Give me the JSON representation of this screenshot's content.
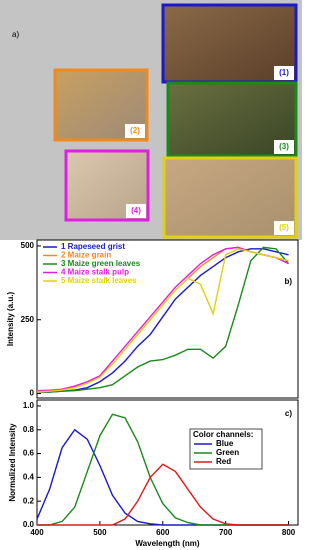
{
  "panel_a": {
    "label": "a)",
    "photos": [
      {
        "label": "(1)",
        "color": "#1a1acc"
      },
      {
        "label": "(2)",
        "color": "#f08a1c"
      },
      {
        "label": "(3)",
        "color": "#1a8a1a"
      },
      {
        "label": "(4)",
        "color": "#e020e0"
      },
      {
        "label": "(5)",
        "color": "#e0d010"
      }
    ]
  },
  "chart_data": [
    {
      "type": "line",
      "panel_label": "b)",
      "y_label": "Intensity (a.u.)",
      "x": [
        400,
        420,
        440,
        460,
        480,
        500,
        520,
        540,
        560,
        580,
        600,
        620,
        640,
        660,
        680,
        700,
        720,
        740,
        760,
        780,
        800
      ],
      "xlim": [
        400,
        815
      ],
      "ylim": [
        -15,
        520
      ],
      "yticks": [
        0,
        250,
        500
      ],
      "series": [
        {
          "name": "1  Rapeseed grist",
          "color": "#1a1acc",
          "values": [
            5,
            5,
            8,
            12,
            20,
            40,
            70,
            110,
            160,
            200,
            260,
            320,
            360,
            400,
            430,
            460,
            480,
            490,
            490,
            480,
            470
          ]
        },
        {
          "name": "2  Maize grain",
          "color": "#f08a1c",
          "values": [
            10,
            12,
            15,
            25,
            40,
            60,
            100,
            150,
            200,
            250,
            300,
            350,
            390,
            430,
            460,
            490,
            495,
            480,
            470,
            460,
            450
          ]
        },
        {
          "name": "3  Maize green leaves",
          "color": "#1a8a1a",
          "values": [
            5,
            5,
            8,
            10,
            15,
            20,
            30,
            60,
            90,
            110,
            115,
            130,
            150,
            150,
            120,
            160,
            300,
            450,
            495,
            490,
            440
          ]
        },
        {
          "name": "4  Maize stalk pulp",
          "color": "#e020e0",
          "values": [
            8,
            10,
            15,
            25,
            40,
            60,
            110,
            160,
            210,
            260,
            310,
            360,
            400,
            440,
            470,
            490,
            495,
            480,
            470,
            460,
            440
          ]
        },
        {
          "name": "5  Maize stalk leaves",
          "color": "#e0d010",
          "values": [
            5,
            8,
            12,
            20,
            35,
            55,
            100,
            150,
            200,
            250,
            300,
            350,
            390,
            370,
            270,
            470,
            490,
            480,
            470,
            460,
            450
          ]
        }
      ]
    },
    {
      "type": "line",
      "panel_label": "c)",
      "y_label": "Normalized Intensity",
      "x_label": "Wavelength (nm)",
      "legend_title": "Color channels:",
      "x": [
        400,
        420,
        440,
        460,
        480,
        500,
        520,
        540,
        560,
        580,
        600,
        620,
        640,
        660,
        680,
        700,
        720,
        740,
        760,
        780,
        800
      ],
      "xlim": [
        400,
        815
      ],
      "xticks": [
        400,
        500,
        600,
        700,
        800
      ],
      "ylim": [
        0,
        1.05
      ],
      "yticks": [
        {
          "value": 0,
          "label": "0.0"
        },
        {
          "value": 0.2,
          "label": "0.2"
        },
        {
          "value": 0.4,
          "label": "0.4"
        },
        {
          "value": 0.6,
          "label": "0.6"
        },
        {
          "value": 0.8,
          "label": "0.8"
        },
        {
          "value": 1,
          "label": "1.0"
        }
      ],
      "series": [
        {
          "name": "Blue",
          "color": "#1a1acc",
          "values": [
            0.05,
            0.3,
            0.65,
            0.8,
            0.72,
            0.5,
            0.25,
            0.1,
            0.03,
            0.01,
            0,
            0,
            0,
            0,
            0,
            0,
            0,
            0,
            0,
            0,
            0
          ]
        },
        {
          "name": "Green",
          "color": "#1a8a1a",
          "values": [
            0,
            0,
            0.03,
            0.15,
            0.45,
            0.75,
            0.93,
            0.9,
            0.7,
            0.4,
            0.18,
            0.06,
            0.02,
            0,
            0,
            0,
            0,
            0,
            0,
            0,
            0
          ]
        },
        {
          "name": "Red",
          "color": "#e01a1a",
          "values": [
            0,
            0,
            0,
            0,
            0,
            0,
            0,
            0.05,
            0.2,
            0.4,
            0.51,
            0.45,
            0.3,
            0.15,
            0.05,
            0.01,
            0,
            0,
            0,
            0,
            0
          ]
        }
      ]
    }
  ]
}
